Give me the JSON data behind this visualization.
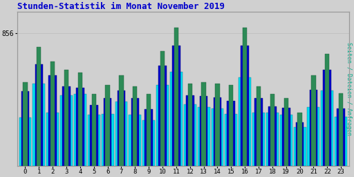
{
  "title": "Stunden-Statistik im Monat November 2019",
  "ylabel_right": "Seiten / Dateien / Anfragen",
  "ytick_label": "856",
  "hours": [
    0,
    1,
    2,
    3,
    4,
    5,
    6,
    7,
    8,
    9,
    10,
    11,
    12,
    13,
    14,
    15,
    16,
    17,
    18,
    19,
    20,
    21,
    22,
    23
  ],
  "seiten": [
    310,
    440,
    385,
    355,
    345,
    265,
    300,
    335,
    295,
    265,
    425,
    510,
    305,
    310,
    305,
    298,
    510,
    295,
    265,
    250,
    198,
    335,
    415,
    268
  ],
  "dateien": [
    275,
    375,
    335,
    295,
    290,
    225,
    250,
    278,
    250,
    210,
    370,
    445,
    262,
    258,
    252,
    240,
    445,
    250,
    220,
    215,
    162,
    282,
    355,
    212
  ],
  "anfragen": [
    180,
    305,
    198,
    262,
    265,
    190,
    192,
    238,
    188,
    170,
    298,
    348,
    228,
    218,
    212,
    192,
    328,
    198,
    198,
    188,
    142,
    218,
    278,
    182
  ],
  "color_seiten": "#2d8b57",
  "color_dateien": "#0000cc",
  "color_anfragen": "#00ddee",
  "bg_color": "#d0d0d0",
  "plot_bg": "#d0d0d0",
  "title_color": "#0000cc",
  "ylabel_color": "#00aa88",
  "bar_width": 0.9,
  "ymax": 570,
  "ymin": 0,
  "figsize": [
    5.12,
    2.56
  ],
  "dpi": 100
}
